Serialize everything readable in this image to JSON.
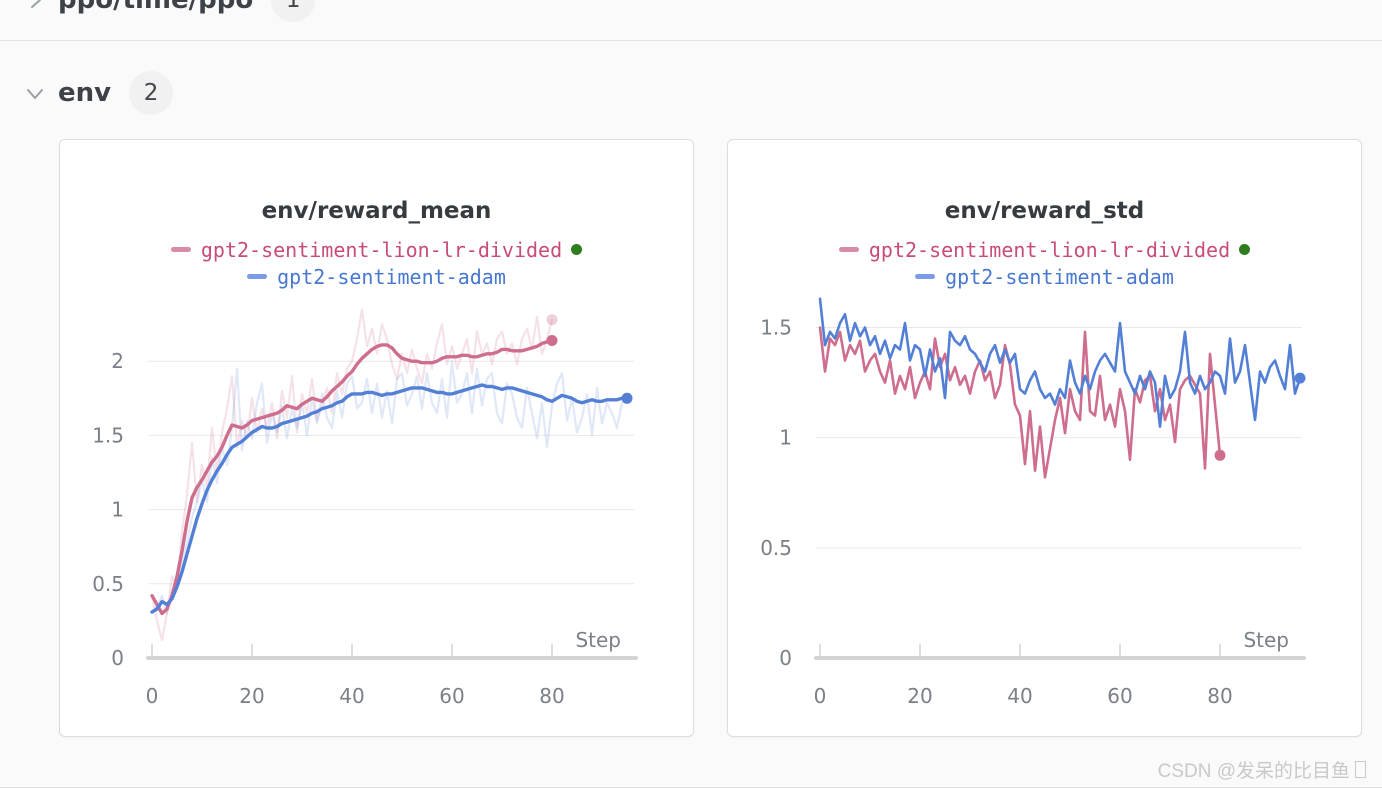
{
  "page": {
    "watermark": "CSDN @发呆的比目鱼"
  },
  "sections": {
    "ppo": {
      "label": "ppo/time/ppo",
      "count": "1",
      "collapsed": true
    },
    "env": {
      "label": "env",
      "count": "2",
      "collapsed": false
    }
  },
  "colors": {
    "page_bg": "#fafafa",
    "card_bg": "#ffffff",
    "card_border": "#dddddd",
    "divider": "#e3e3e3",
    "header_text": "#3d4248",
    "badge_bg": "#f1f1f1",
    "badge_text": "#41464c",
    "title_text": "#363b40",
    "axis_text": "#7b8088",
    "gridline": "#e9e9e9",
    "axis_line": "#d4d4d4",
    "tick_mark": "#dedede",
    "pink_line": "#ce6d8c",
    "pink_text": "#c84c77",
    "pink_dash": "#d98ba4",
    "blue_line": "#5380d6",
    "blue_text": "#4878d0",
    "blue_dash": "#7a9ce6",
    "run_state_green": "#2e7d1f",
    "watermark": "#c9c9c9"
  },
  "chart_data": [
    {
      "type": "line",
      "title": "env/reward_mean",
      "xlabel": "Step",
      "xlim": [
        0,
        96
      ],
      "ylim": [
        0,
        2.48
      ],
      "yticks": [
        0,
        0.5,
        1,
        1.5,
        2
      ],
      "xticks": [
        0,
        20,
        40,
        60,
        80
      ],
      "grid": true,
      "legend_position": "top",
      "legend": [
        {
          "name": "gpt2-sentiment-lion-lr-divided",
          "text_color": "#c84c77",
          "dash_color": "#d98ba4",
          "run_state_dot": true
        },
        {
          "name": "gpt2-sentiment-adam",
          "text_color": "#4878d0",
          "dash_color": "#7a9ce6",
          "run_state_dot": false
        }
      ],
      "series": [
        {
          "name": "gpt2-sentiment-lion-lr-divided (raw)",
          "role": "raw",
          "color": "#ce6d8c",
          "opacity": 0.2,
          "width": 2.2,
          "end_dot": true,
          "end_dot_opacity": 0.32,
          "y": [
            0.42,
            0.25,
            0.12,
            0.3,
            0.55,
            0.48,
            0.85,
            1.1,
            1.45,
            1.05,
            1.3,
            1.15,
            1.55,
            1.25,
            1.52,
            1.68,
            1.9,
            1.42,
            1.6,
            1.48,
            1.75,
            1.52,
            1.68,
            1.55,
            1.72,
            1.48,
            1.8,
            1.62,
            1.9,
            1.52,
            1.78,
            1.65,
            1.88,
            1.6,
            1.7,
            1.82,
            1.65,
            1.92,
            1.78,
            1.95,
            2.0,
            2.15,
            2.35,
            2.1,
            2.22,
            2.05,
            2.25,
            2.15,
            1.98,
            1.88,
            2.05,
            1.92,
            2.08,
            1.95,
            1.85,
            2.05,
            1.95,
            2.12,
            2.25,
            1.98,
            2.1,
            1.95,
            2.05,
            2.15,
            1.92,
            2.2,
            2.05,
            2.12,
            1.98,
            2.15,
            2.2,
            2.05,
            2.12,
            1.98,
            2.15,
            2.22,
            2.08,
            2.3,
            2.05,
            2.15,
            2.28
          ]
        },
        {
          "name": "gpt2-sentiment-adam (raw)",
          "role": "raw",
          "color": "#5380d6",
          "opacity": 0.18,
          "width": 2.2,
          "end_dot": false,
          "y": [
            0.31,
            0.35,
            0.42,
            0.3,
            0.45,
            0.52,
            0.65,
            0.78,
            0.95,
            1.05,
            1.2,
            1.05,
            1.35,
            1.18,
            1.42,
            1.3,
            1.55,
            1.95,
            1.4,
            1.6,
            1.48,
            1.72,
            1.85,
            1.45,
            1.65,
            1.52,
            1.7,
            1.48,
            1.68,
            1.55,
            1.72,
            1.5,
            1.75,
            1.58,
            1.78,
            1.62,
            1.55,
            1.8,
            1.62,
            1.85,
            1.9,
            1.68,
            1.72,
            1.88,
            1.65,
            1.85,
            1.62,
            1.8,
            1.58,
            1.88,
            1.92,
            1.7,
            1.78,
            1.9,
            1.68,
            1.92,
            1.72,
            1.65,
            1.88,
            1.62,
            2.0,
            1.72,
            1.78,
            1.92,
            1.65,
            1.95,
            1.7,
            1.88,
            1.92,
            1.65,
            1.58,
            1.85,
            1.78,
            1.62,
            1.55,
            1.82,
            1.65,
            1.48,
            1.72,
            1.42,
            1.7,
            1.85,
            1.92,
            1.6,
            1.75,
            1.52,
            1.62,
            1.78,
            1.5,
            1.82,
            1.58,
            1.72,
            1.65,
            1.55,
            1.72,
            1.78
          ]
        },
        {
          "name": "gpt2-sentiment-lion-lr-divided",
          "role": "smoothed",
          "color": "#ce6d8c",
          "opacity": 1,
          "width": 3.4,
          "end_dot": true,
          "y": [
            0.42,
            0.36,
            0.3,
            0.33,
            0.42,
            0.55,
            0.72,
            0.92,
            1.08,
            1.15,
            1.2,
            1.26,
            1.32,
            1.36,
            1.42,
            1.5,
            1.57,
            1.56,
            1.55,
            1.57,
            1.6,
            1.61,
            1.62,
            1.63,
            1.64,
            1.65,
            1.67,
            1.7,
            1.69,
            1.68,
            1.71,
            1.73,
            1.75,
            1.74,
            1.73,
            1.76,
            1.8,
            1.83,
            1.86,
            1.9,
            1.93,
            1.98,
            2.02,
            2.05,
            2.08,
            2.1,
            2.11,
            2.11,
            2.09,
            2.05,
            2.02,
            2.01,
            2.0,
            2.0,
            1.99,
            1.99,
            1.99,
            2.0,
            2.02,
            2.03,
            2.03,
            2.03,
            2.04,
            2.04,
            2.03,
            2.03,
            2.04,
            2.05,
            2.05,
            2.06,
            2.08,
            2.08,
            2.07,
            2.07,
            2.07,
            2.08,
            2.09,
            2.1,
            2.12,
            2.13,
            2.14
          ]
        },
        {
          "name": "gpt2-sentiment-adam",
          "role": "smoothed",
          "color": "#5380d6",
          "opacity": 1,
          "width": 3.4,
          "end_dot": true,
          "y": [
            0.31,
            0.33,
            0.38,
            0.36,
            0.4,
            0.48,
            0.58,
            0.7,
            0.82,
            0.94,
            1.04,
            1.13,
            1.2,
            1.26,
            1.31,
            1.37,
            1.42,
            1.44,
            1.46,
            1.49,
            1.52,
            1.54,
            1.56,
            1.55,
            1.55,
            1.56,
            1.58,
            1.59,
            1.6,
            1.61,
            1.62,
            1.63,
            1.65,
            1.66,
            1.68,
            1.69,
            1.7,
            1.72,
            1.73,
            1.76,
            1.78,
            1.78,
            1.78,
            1.79,
            1.79,
            1.78,
            1.77,
            1.78,
            1.78,
            1.79,
            1.8,
            1.81,
            1.82,
            1.82,
            1.82,
            1.81,
            1.8,
            1.79,
            1.79,
            1.78,
            1.78,
            1.79,
            1.8,
            1.81,
            1.82,
            1.83,
            1.84,
            1.83,
            1.83,
            1.82,
            1.81,
            1.82,
            1.82,
            1.81,
            1.8,
            1.79,
            1.78,
            1.77,
            1.76,
            1.74,
            1.73,
            1.75,
            1.77,
            1.76,
            1.75,
            1.73,
            1.72,
            1.73,
            1.74,
            1.73,
            1.73,
            1.74,
            1.74,
            1.74,
            1.75,
            1.75
          ]
        }
      ]
    },
    {
      "type": "line",
      "title": "env/reward_std",
      "xlabel": "Step",
      "xlim": [
        0,
        96
      ],
      "ylim": [
        0,
        1.67
      ],
      "yticks": [
        0,
        0.5,
        1,
        1.5
      ],
      "xticks": [
        0,
        20,
        40,
        60,
        80
      ],
      "grid": true,
      "legend_position": "top",
      "legend": [
        {
          "name": "gpt2-sentiment-lion-lr-divided",
          "text_color": "#c84c77",
          "dash_color": "#d98ba4",
          "run_state_dot": true
        },
        {
          "name": "gpt2-sentiment-adam",
          "text_color": "#4878d0",
          "dash_color": "#7a9ce6",
          "run_state_dot": false
        }
      ],
      "series": [
        {
          "name": "gpt2-sentiment-lion-lr-divided",
          "role": "line",
          "color": "#ce6d8c",
          "opacity": 1,
          "width": 2.6,
          "end_dot": true,
          "y": [
            1.5,
            1.3,
            1.45,
            1.42,
            1.48,
            1.35,
            1.42,
            1.38,
            1.44,
            1.3,
            1.35,
            1.38,
            1.3,
            1.25,
            1.35,
            1.2,
            1.28,
            1.22,
            1.32,
            1.18,
            1.25,
            1.3,
            1.22,
            1.45,
            1.32,
            1.38,
            1.26,
            1.32,
            1.24,
            1.28,
            1.2,
            1.3,
            1.35,
            1.26,
            1.3,
            1.18,
            1.24,
            1.42,
            1.33,
            1.15,
            1.1,
            0.88,
            1.12,
            0.85,
            1.05,
            0.82,
            0.95,
            1.08,
            1.18,
            1.02,
            1.22,
            1.12,
            1.08,
            1.48,
            1.12,
            1.1,
            1.28,
            1.08,
            1.15,
            1.05,
            1.22,
            1.12,
            0.9,
            1.22,
            1.16,
            1.26,
            1.28,
            1.12,
            1.22,
            1.08,
            1.15,
            0.98,
            1.22,
            1.26,
            1.28,
            1.24,
            1.2,
            0.86,
            1.38,
            1.15,
            0.92
          ]
        },
        {
          "name": "gpt2-sentiment-adam",
          "role": "line",
          "color": "#5380d6",
          "opacity": 1,
          "width": 2.6,
          "end_dot": true,
          "y": [
            1.63,
            1.42,
            1.48,
            1.45,
            1.52,
            1.56,
            1.44,
            1.52,
            1.46,
            1.5,
            1.42,
            1.46,
            1.38,
            1.44,
            1.36,
            1.42,
            1.4,
            1.52,
            1.35,
            1.42,
            1.4,
            1.28,
            1.4,
            1.3,
            1.36,
            1.18,
            1.48,
            1.44,
            1.42,
            1.46,
            1.4,
            1.38,
            1.34,
            1.3,
            1.38,
            1.42,
            1.34,
            1.4,
            1.34,
            1.38,
            1.22,
            1.2,
            1.26,
            1.3,
            1.22,
            1.18,
            1.2,
            1.15,
            1.22,
            1.18,
            1.35,
            1.25,
            1.2,
            1.28,
            1.22,
            1.3,
            1.35,
            1.38,
            1.34,
            1.3,
            1.52,
            1.3,
            1.25,
            1.2,
            1.28,
            1.22,
            1.3,
            1.25,
            1.05,
            1.28,
            1.18,
            1.22,
            1.3,
            1.48,
            1.25,
            1.2,
            1.28,
            1.22,
            1.25,
            1.3,
            1.28,
            1.2,
            1.45,
            1.25,
            1.3,
            1.42,
            1.25,
            1.08,
            1.3,
            1.25,
            1.32,
            1.35,
            1.28,
            1.22,
            1.42,
            1.2,
            1.27
          ]
        }
      ]
    }
  ]
}
